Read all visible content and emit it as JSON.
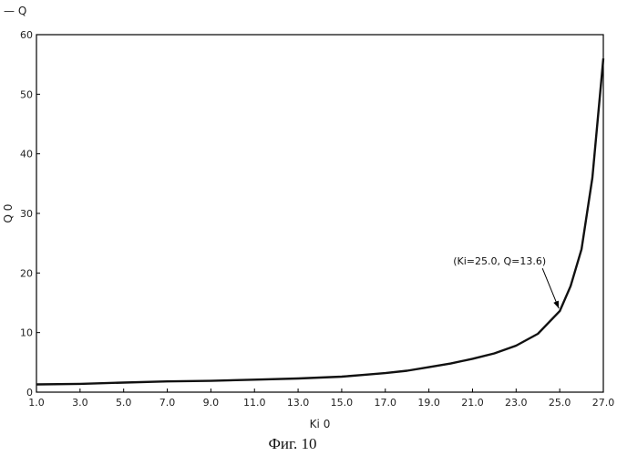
{
  "chart_data": {
    "type": "line",
    "legend_label": "— Q",
    "legend_position": "top-left",
    "xlabel": "Ki 0",
    "ylabel": "Q 0",
    "xlim": [
      1.0,
      27.0
    ],
    "ylim": [
      0,
      60
    ],
    "x_ticks": [
      "1.0",
      "3.0",
      "5.0",
      "7.0",
      "9.0",
      "11.0",
      "13.0",
      "15.0",
      "17.0",
      "19.0",
      "21.0",
      "23.0",
      "25.0",
      "27.0"
    ],
    "y_ticks": [
      "0",
      "10",
      "20",
      "30",
      "40",
      "50",
      "60"
    ],
    "grid": false,
    "series": [
      {
        "x": [
          1.0,
          3.0,
          5.0,
          7.0,
          9.0,
          11.0,
          13.0,
          15.0,
          16.0,
          17.0,
          18.0,
          19.0,
          20.0,
          21.0,
          22.0,
          23.0,
          24.0,
          25.0,
          25.5,
          26.0,
          26.5,
          27.0
        ],
        "y": [
          1.3,
          1.4,
          1.6,
          1.8,
          1.9,
          2.1,
          2.3,
          2.6,
          2.9,
          3.2,
          3.6,
          4.2,
          4.8,
          5.6,
          6.5,
          7.8,
          9.8,
          13.6,
          17.8,
          24.0,
          36.0,
          56.0
        ],
        "color": "#111111"
      }
    ],
    "annotation": {
      "text": "(Ki=25.0, Q=13.6)",
      "x": 25.0,
      "y": 13.6
    },
    "caption": "Фиг. 10"
  }
}
